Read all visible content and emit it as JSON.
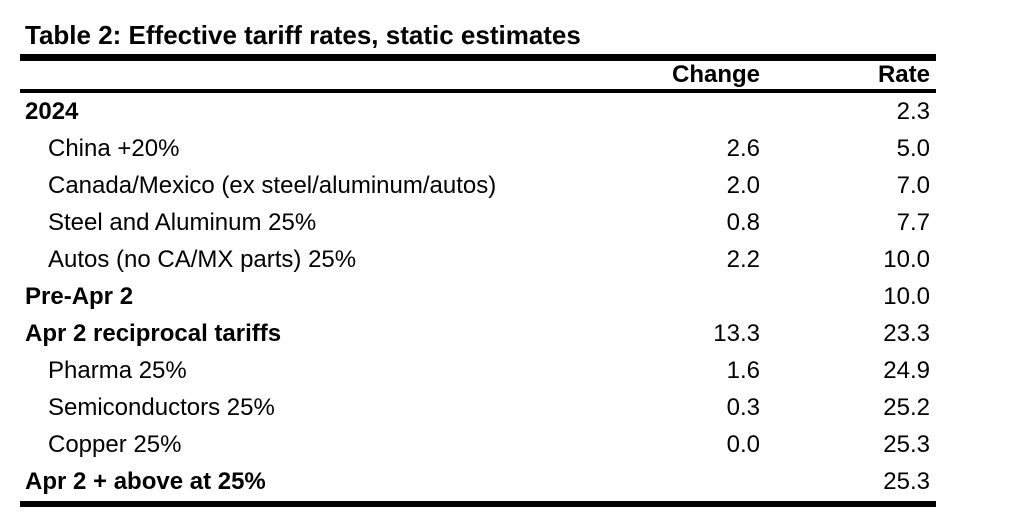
{
  "title": "Table 2: Effective tariff rates, static estimates",
  "colors": {
    "text": "#000000",
    "background": "#ffffff",
    "rule": "#000000"
  },
  "table": {
    "columns": [
      "Change",
      "Rate"
    ],
    "rows": [
      {
        "label": "2024",
        "style": "section",
        "change": "",
        "rate": "2.3"
      },
      {
        "label": "China +20%",
        "style": "item",
        "change": "2.6",
        "rate": "5.0"
      },
      {
        "label": "Canada/Mexico (ex steel/aluminum/autos)",
        "style": "item",
        "change": "2.0",
        "rate": "7.0"
      },
      {
        "label": "Steel and Aluminum 25%",
        "style": "item",
        "change": "0.8",
        "rate": "7.7"
      },
      {
        "label": "Autos (no CA/MX parts) 25%",
        "style": "item",
        "change": "2.2",
        "rate": "10.0"
      },
      {
        "label": "Pre-Apr 2",
        "style": "section",
        "change": "",
        "rate": "10.0"
      },
      {
        "label": "Apr 2 reciprocal tariffs",
        "style": "section",
        "change": "13.3",
        "rate": "23.3"
      },
      {
        "label": "Pharma 25%",
        "style": "item",
        "change": "1.6",
        "rate": "24.9"
      },
      {
        "label": "Semiconductors 25%",
        "style": "item",
        "change": "0.3",
        "rate": "25.2"
      },
      {
        "label": "Copper 25%",
        "style": "item",
        "change": "0.0",
        "rate": "25.3"
      },
      {
        "label": "Apr 2 + above at 25%",
        "style": "section",
        "change": "",
        "rate": "25.3"
      }
    ]
  }
}
